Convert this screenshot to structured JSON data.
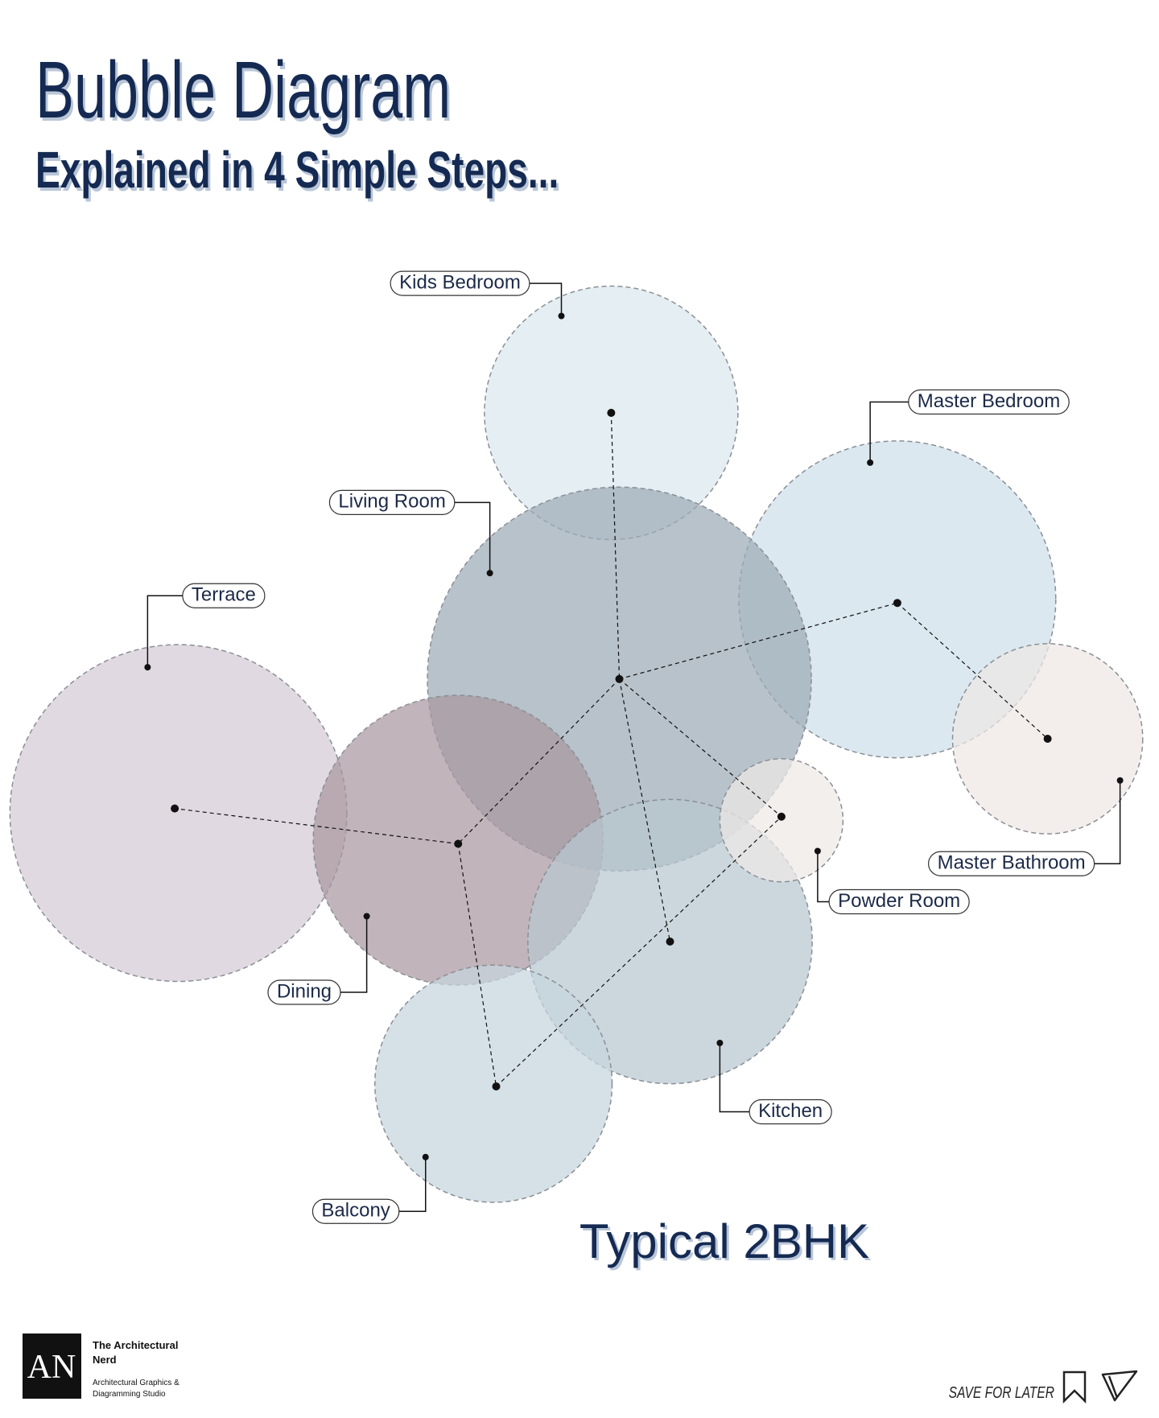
{
  "header": {
    "title": "Bubble Diagram",
    "subtitle": "Explained in 4 Simple Steps..."
  },
  "nodes": [
    {
      "label": "Kids Bedroom"
    },
    {
      "label": "Master Bedroom"
    },
    {
      "label": "Living Room"
    },
    {
      "label": "Terrace"
    },
    {
      "label": "Dining"
    },
    {
      "label": "Kitchen"
    },
    {
      "label": "Balcony"
    },
    {
      "label": "Powder Room"
    },
    {
      "label": "Master Bathroom"
    }
  ],
  "caption": "Typical 2BHK",
  "footer": {
    "logo": "AN",
    "brand": [
      "The Architectural",
      "Nerd"
    ],
    "tagline": [
      "Architectural Graphics &",
      "Diagramming Studio"
    ],
    "save": "SAVE FOR LATER"
  }
}
